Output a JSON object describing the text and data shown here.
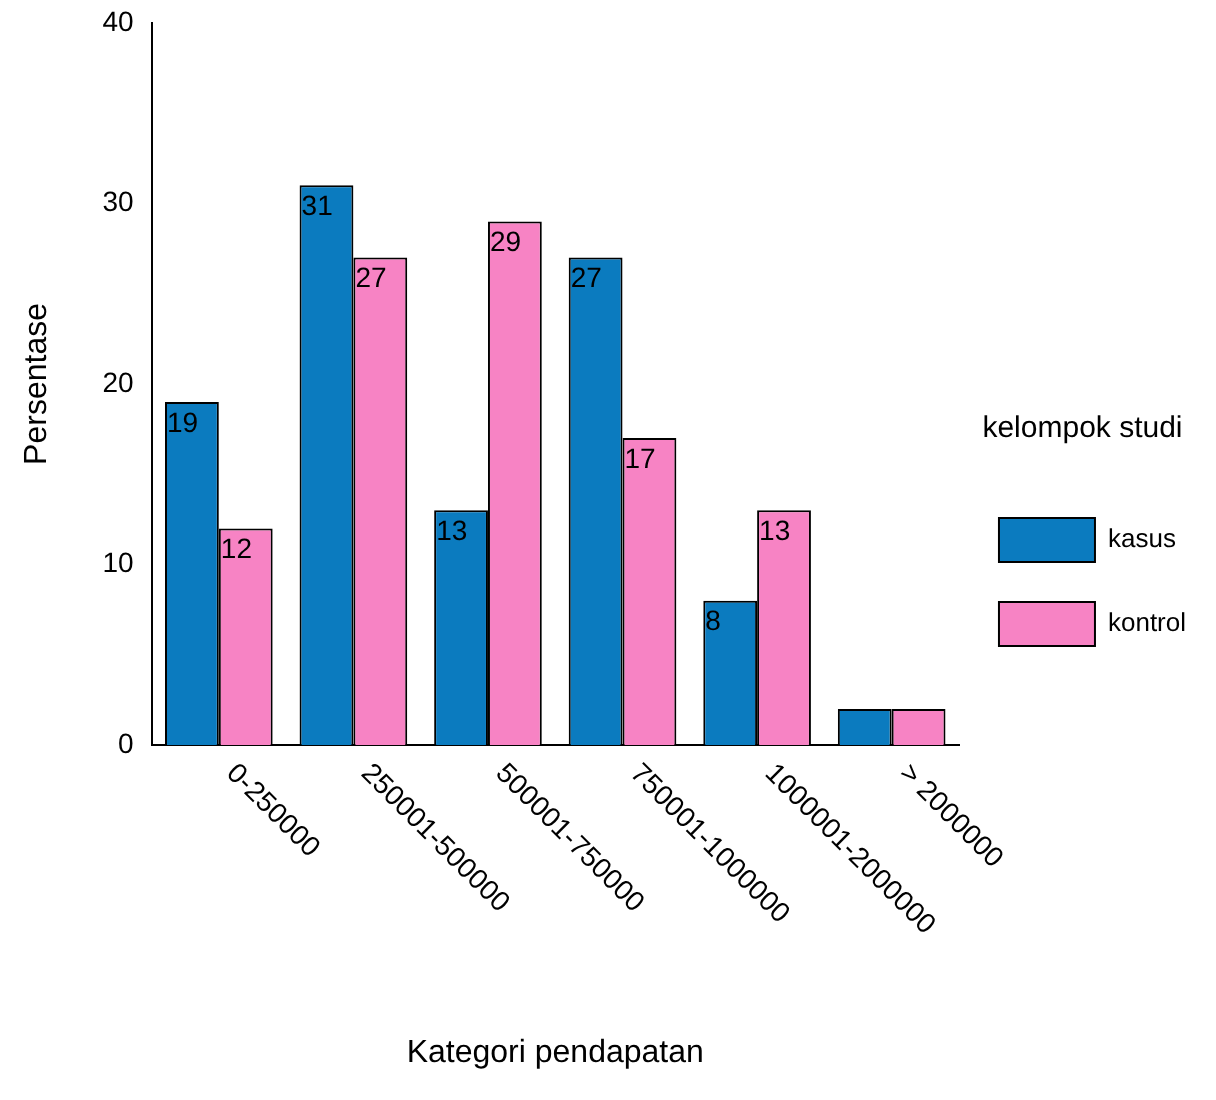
{
  "chart_data": {
    "type": "bar",
    "xlabel": "Kategori pendapatan",
    "ylabel": "Persentase",
    "legend_title": "kelompok studi",
    "categories": [
      "0-250000",
      "250001-500000",
      "500001-750000",
      "750001-1000000",
      "1000001-2000000",
      "> 2000000"
    ],
    "series": [
      {
        "name": "kasus",
        "color": "#0b7bbf",
        "values": [
          19,
          31,
          13,
          27,
          8,
          2
        ],
        "value_labels": [
          "19",
          "31",
          "13",
          "27",
          "8",
          null
        ]
      },
      {
        "name": "kontrol",
        "color": "#f783c4",
        "values": [
          12,
          27,
          29,
          17,
          13,
          2
        ],
        "value_labels": [
          "12",
          "27",
          "29",
          "17",
          "13",
          null
        ]
      }
    ],
    "ylim": [
      0,
      40
    ],
    "yticks": [
      0,
      10,
      20,
      30,
      40
    ],
    "grid": false,
    "legend": "right"
  }
}
